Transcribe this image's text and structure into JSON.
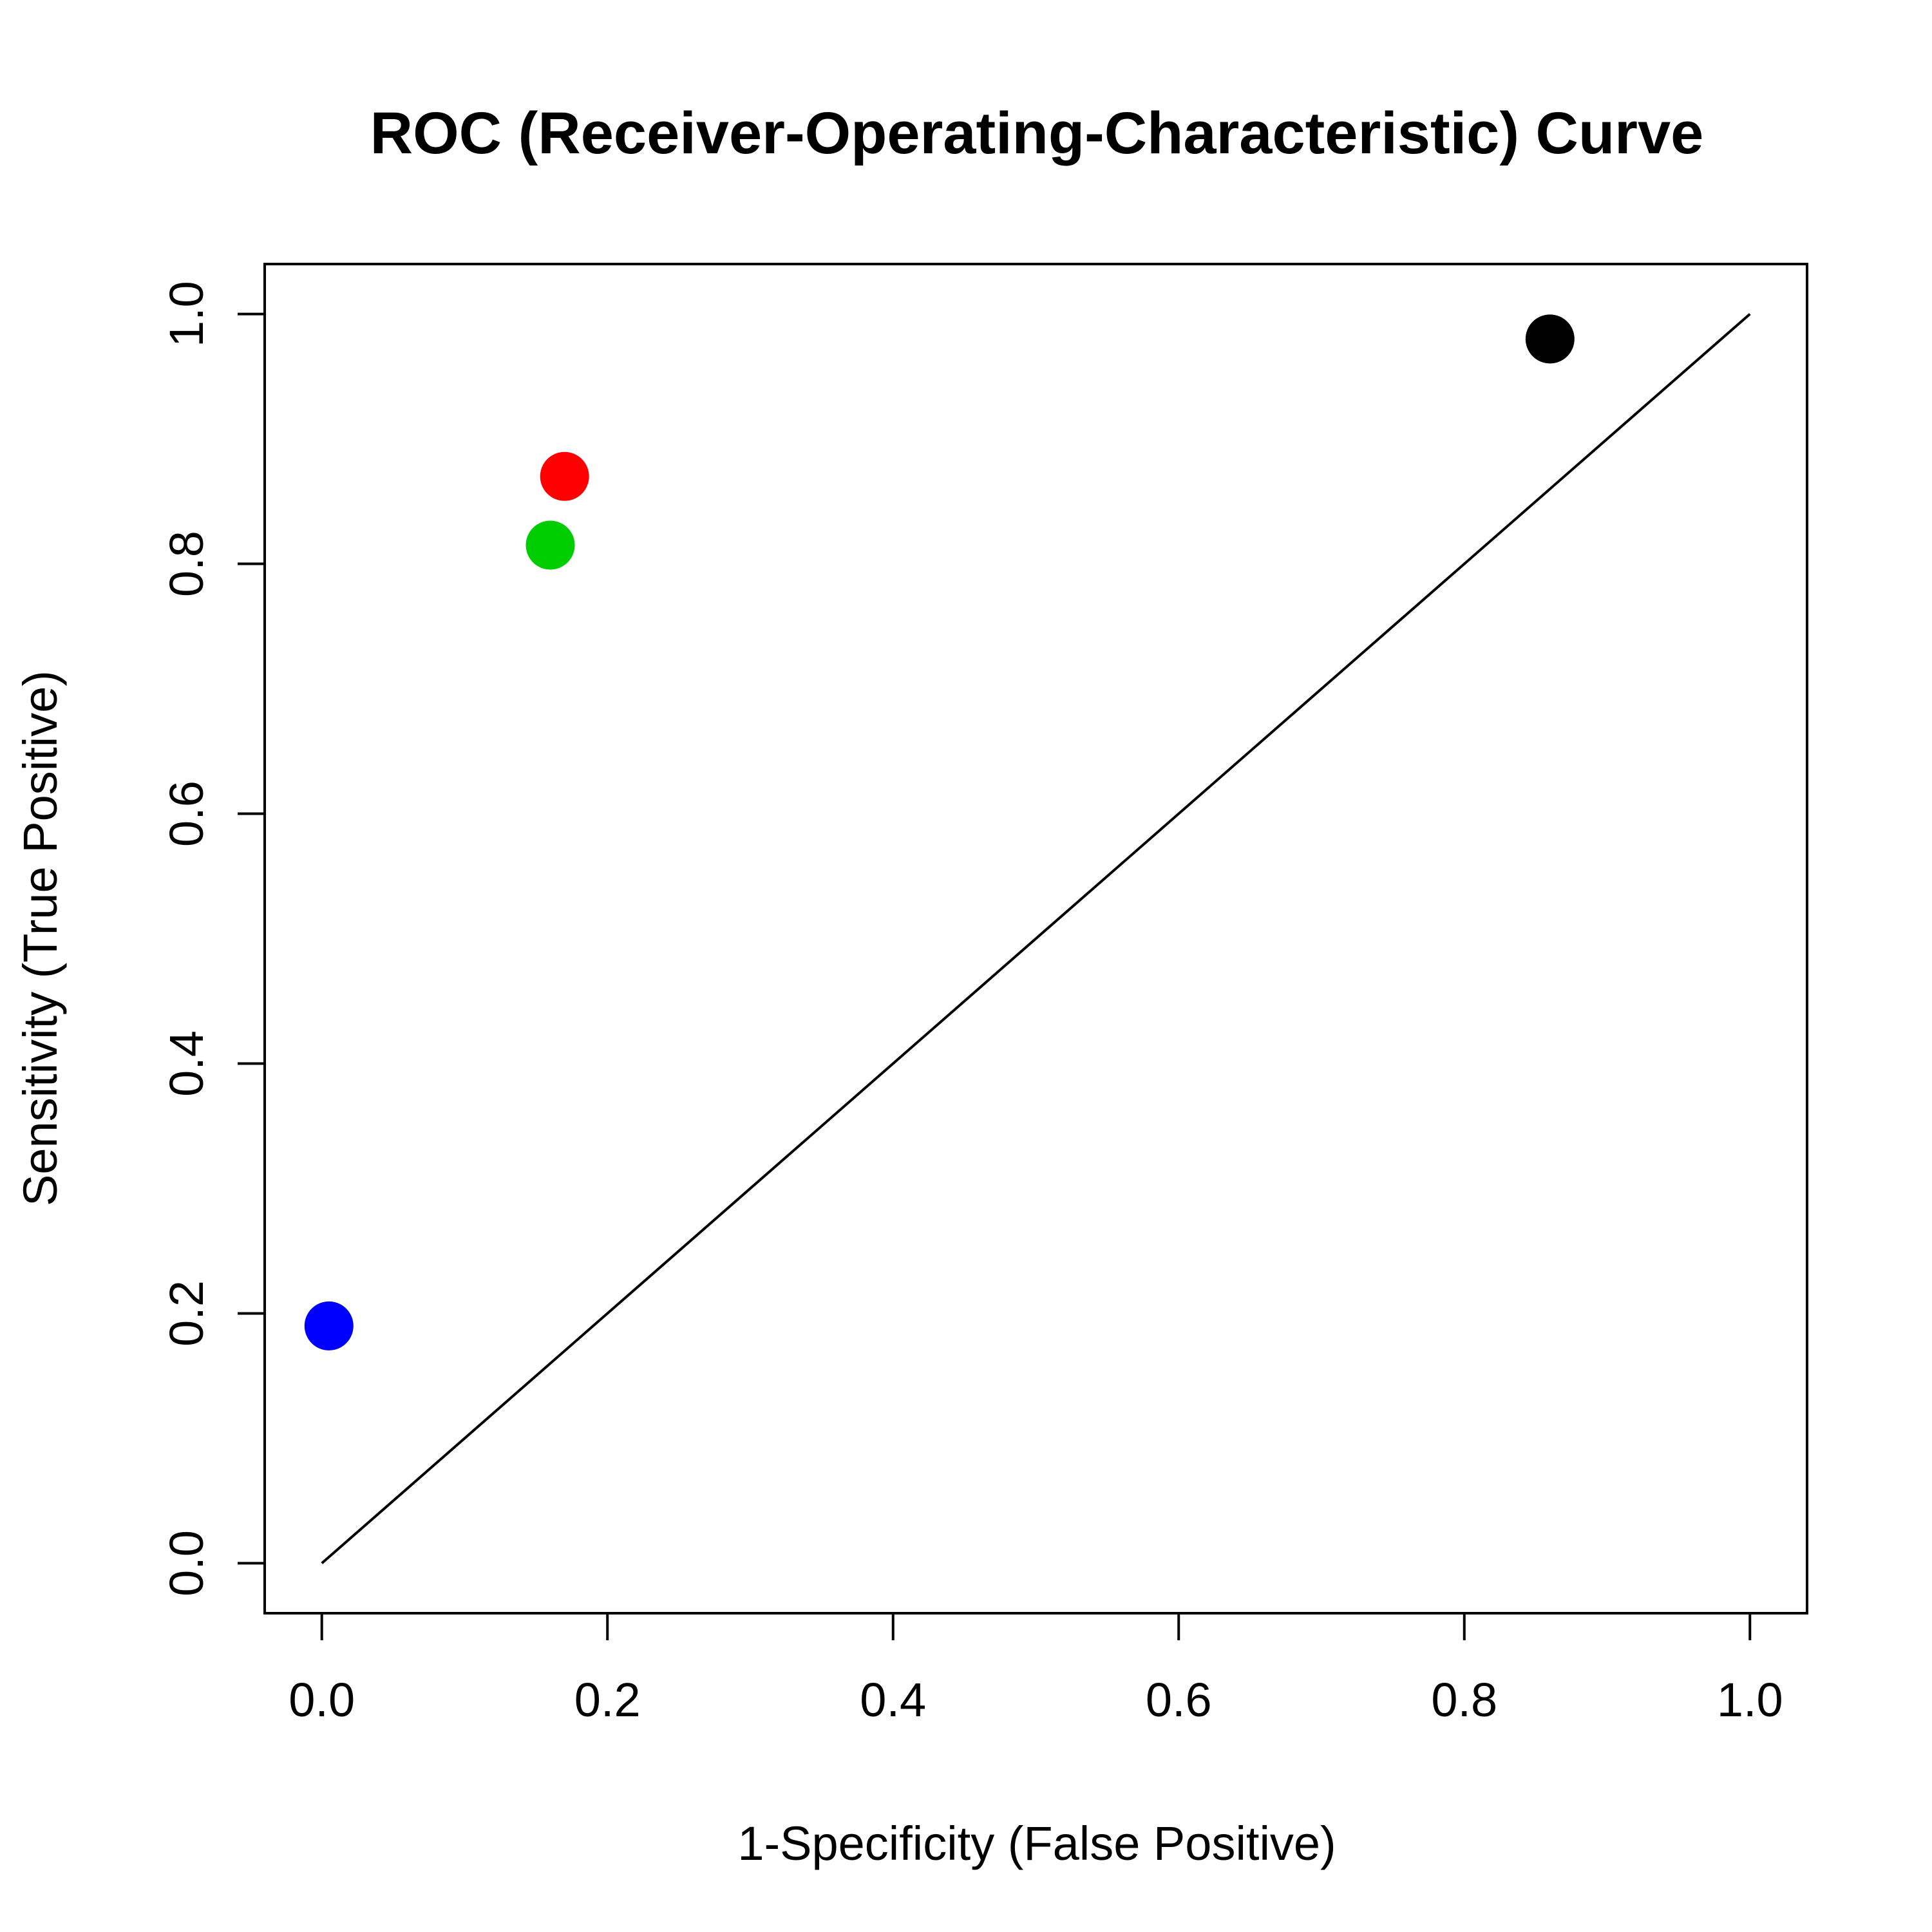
{
  "chart_data": {
    "type": "scatter",
    "title": "ROC (Receiver-Operating-Characteristic) Curve",
    "xlabel": "1-Specificity (False Positive)",
    "ylabel": "Sensitivity (True Positive)",
    "xlim": [
      -0.04,
      1.04
    ],
    "ylim": [
      -0.04,
      1.04
    ],
    "xticks": [
      0.0,
      0.2,
      0.4,
      0.6,
      0.8,
      1.0
    ],
    "yticks": [
      0.0,
      0.2,
      0.4,
      0.6,
      0.8,
      1.0
    ],
    "xtick_labels": [
      "0.0",
      "0.2",
      "0.4",
      "0.6",
      "0.8",
      "1.0"
    ],
    "ytick_labels": [
      "0.0",
      "0.2",
      "0.4",
      "0.6",
      "0.8",
      "1.0"
    ],
    "grid": false,
    "reference_line": {
      "x": [
        0,
        1
      ],
      "y": [
        0,
        1
      ],
      "color": "#000000"
    },
    "points": [
      {
        "x": 0.005,
        "y": 0.19,
        "color": "#0000FF",
        "color_name": "blue"
      },
      {
        "x": 0.16,
        "y": 0.815,
        "color": "#00CD00",
        "color_name": "green"
      },
      {
        "x": 0.17,
        "y": 0.87,
        "color": "#FF0000",
        "color_name": "red"
      },
      {
        "x": 0.86,
        "y": 0.98,
        "color": "#000000",
        "color_name": "black"
      }
    ]
  }
}
